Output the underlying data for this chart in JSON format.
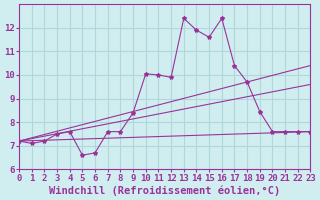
{
  "background_color": "#d0eef0",
  "line_color": "#993399",
  "marker": "*",
  "xlabel": "Windchill (Refroidissement éolien,°C)",
  "xlabel_fontsize": 7.5,
  "ylim": [
    6,
    13
  ],
  "xlim": [
    0,
    23
  ],
  "yticks": [
    6,
    7,
    8,
    9,
    10,
    11,
    12
  ],
  "xticks": [
    0,
    1,
    2,
    3,
    4,
    5,
    6,
    7,
    8,
    9,
    10,
    11,
    12,
    13,
    14,
    15,
    16,
    17,
    18,
    19,
    20,
    21,
    22,
    23
  ],
  "tick_fontsize": 6.5,
  "grid_color": "#b0d8dc",
  "lines": [
    {
      "x": [
        0,
        1,
        2,
        3,
        4,
        5,
        6,
        7,
        8,
        9,
        10,
        11,
        12,
        13,
        14,
        15,
        16,
        17,
        18,
        19,
        20,
        21,
        22,
        23
      ],
      "y": [
        7.2,
        7.1,
        7.2,
        7.5,
        7.6,
        6.6,
        6.7,
        7.6,
        7.6,
        8.4,
        10.05,
        10.0,
        9.9,
        12.4,
        11.9,
        11.6,
        12.4,
        10.4,
        9.7,
        8.45,
        7.6,
        7.6,
        7.6,
        7.6
      ]
    },
    {
      "x": [
        0,
        23
      ],
      "y": [
        7.2,
        10.4
      ]
    },
    {
      "x": [
        0,
        23
      ],
      "y": [
        7.2,
        9.6
      ]
    },
    {
      "x": [
        0,
        23
      ],
      "y": [
        7.2,
        7.6
      ]
    }
  ]
}
